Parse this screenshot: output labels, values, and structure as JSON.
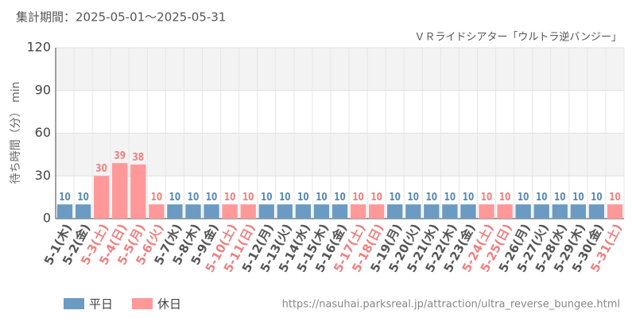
{
  "chart_data": {
    "type": "bar",
    "title": "集計期間：2025-05-01～2025-05-31",
    "subtitle": "ＶＲライドシアター「ウルトラ逆バンジー」",
    "y_label": "待ち時間（分） min",
    "source": "https://nasuhai.parksreal.jp/attraction/ultra_reverse_bungee.html",
    "categories": [
      "5-1(木)",
      "5-2(金)",
      "5-3(土)",
      "5-4(日)",
      "5-5(月)",
      "5-6(火)",
      "5-7(水)",
      "5-8(木)",
      "5-9(金)",
      "5-10(土)",
      "5-11(日)",
      "5-12(月)",
      "5-13(火)",
      "5-14(水)",
      "5-15(木)",
      "5-16(金)",
      "5-17(土)",
      "5-18(日)",
      "5-19(月)",
      "5-20(火)",
      "5-21(水)",
      "5-22(木)",
      "5-23(金)",
      "5-24(土)",
      "5-25(日)",
      "5-26(月)",
      "5-27(火)",
      "5-28(水)",
      "5-29(木)",
      "5-30(金)",
      "5-31(土)"
    ],
    "series": [
      {
        "name": "平日",
        "color": "#6b9bc3",
        "label_color": "#5a88b3",
        "values": [
          10,
          10,
          null,
          null,
          null,
          null,
          10,
          10,
          10,
          null,
          null,
          10,
          10,
          10,
          10,
          10,
          null,
          null,
          10,
          10,
          10,
          10,
          10,
          null,
          null,
          10,
          10,
          10,
          10,
          10,
          null
        ]
      },
      {
        "name": "休日",
        "color": "#ff9999",
        "label_color": "#f08080",
        "values": [
          null,
          null,
          30,
          39,
          38,
          10,
          null,
          null,
          null,
          10,
          10,
          null,
          null,
          null,
          null,
          null,
          10,
          10,
          null,
          null,
          null,
          null,
          null,
          10,
          10,
          null,
          null,
          null,
          null,
          null,
          10
        ]
      }
    ],
    "ylim": [
      0,
      120
    ],
    "yticks": [
      0,
      30,
      60,
      90,
      120
    ],
    "grid": true
  }
}
